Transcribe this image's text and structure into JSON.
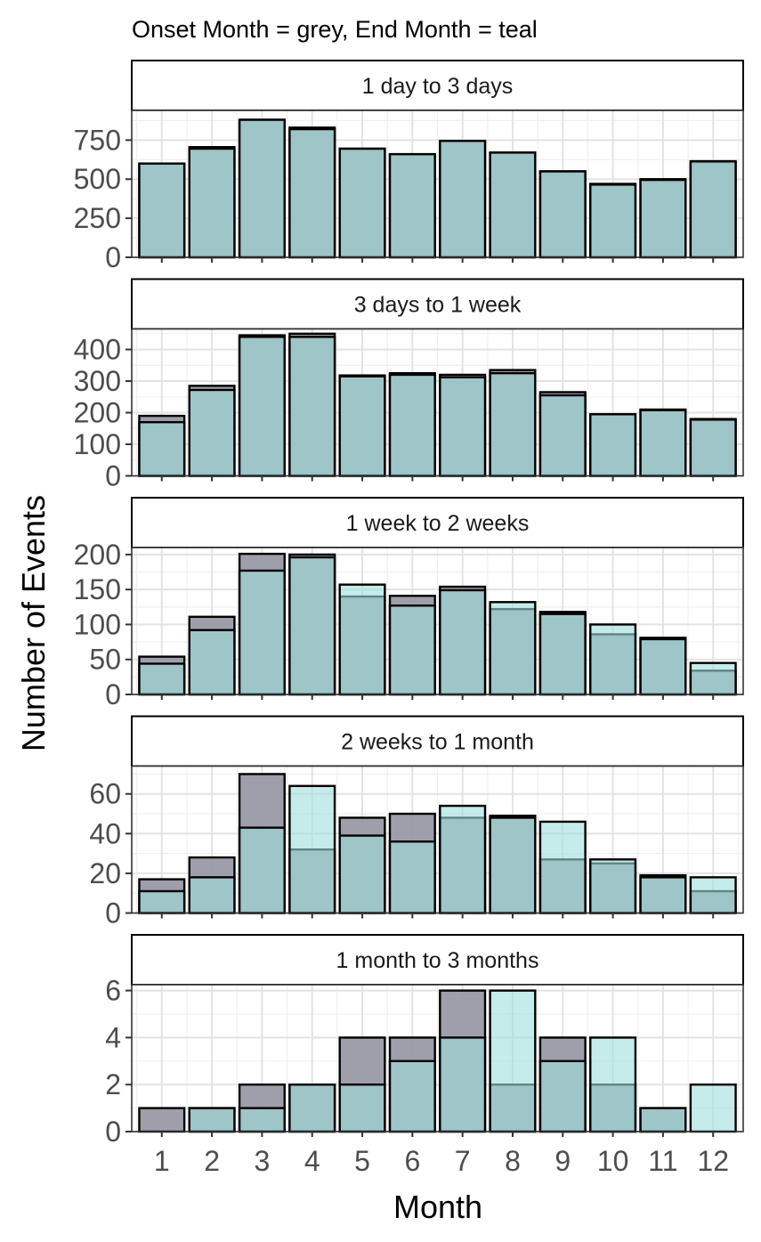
{
  "chart_data": {
    "type": "bar",
    "subtitle": "Onset Month = grey, End Month = teal",
    "xlabel": "Month",
    "ylabel": "Number of Events",
    "categories": [
      "1",
      "2",
      "3",
      "4",
      "5",
      "6",
      "7",
      "8",
      "9",
      "10",
      "11",
      "12"
    ],
    "legend": "none",
    "grid": true,
    "colors": {
      "onset": "#9a9aa6",
      "end": "#9fdfdc",
      "overlap": "#6aa9ab",
      "border": "#000000",
      "strip_fill": "#ffffff"
    },
    "panels": [
      {
        "label": "1 day to 3 days",
        "ylim": [
          0,
          940
        ],
        "yticks": [
          0,
          250,
          500,
          750
        ],
        "series": [
          {
            "name": "Onset Month",
            "values": [
              600,
              705,
              880,
              830,
              695,
              660,
              745,
              670,
              550,
              470,
              500,
              610
            ]
          },
          {
            "name": "End Month",
            "values": [
              600,
              695,
              880,
              820,
              695,
              660,
              745,
              670,
              550,
              465,
              495,
              615
            ]
          }
        ]
      },
      {
        "label": "3 days to 1 week",
        "ylim": [
          0,
          465
        ],
        "yticks": [
          0,
          100,
          200,
          300,
          400
        ],
        "series": [
          {
            "name": "Onset Month",
            "values": [
              190,
              285,
              445,
              450,
              318,
              325,
              320,
              335,
              265,
              195,
              210,
              180
            ]
          },
          {
            "name": "End Month",
            "values": [
              170,
              272,
              440,
              440,
              315,
              320,
              312,
              325,
              255,
              195,
              208,
              178
            ]
          }
        ]
      },
      {
        "label": "1 week to 2 weeks",
        "ylim": [
          0,
          210
        ],
        "yticks": [
          0,
          50,
          100,
          150,
          200
        ],
        "series": [
          {
            "name": "Onset Month",
            "values": [
              54,
              111,
              201,
              200,
              140,
              141,
              154,
              122,
              118,
              86,
              81,
              34
            ]
          },
          {
            "name": "End Month",
            "values": [
              44,
              92,
              177,
              196,
              157,
              127,
              149,
              132,
              115,
              100,
              79,
              45
            ]
          }
        ]
      },
      {
        "label": "2 weeks to 1 month",
        "ylim": [
          0,
          74
        ],
        "yticks": [
          0,
          20,
          40,
          60
        ],
        "series": [
          {
            "name": "Onset Month",
            "values": [
              17,
              28,
              70,
              32,
              48,
              50,
              48,
              49,
              27,
              25,
              19,
              11
            ]
          },
          {
            "name": "End Month",
            "values": [
              11,
              18,
              43,
              64,
              39,
              36,
              54,
              48,
              46,
              27,
              18,
              18
            ]
          }
        ]
      },
      {
        "label": "1 month to 3 months",
        "ylim": [
          0,
          6.25
        ],
        "yticks": [
          0,
          2,
          4,
          6
        ],
        "series": [
          {
            "name": "Onset Month",
            "values": [
              1,
              1,
              2,
              2,
              4,
              4,
              6,
              2,
              4,
              2,
              1,
              0
            ]
          },
          {
            "name": "End Month",
            "values": [
              0,
              1,
              1,
              2,
              2,
              3,
              4,
              6,
              3,
              4,
              1,
              2
            ]
          }
        ]
      }
    ]
  }
}
